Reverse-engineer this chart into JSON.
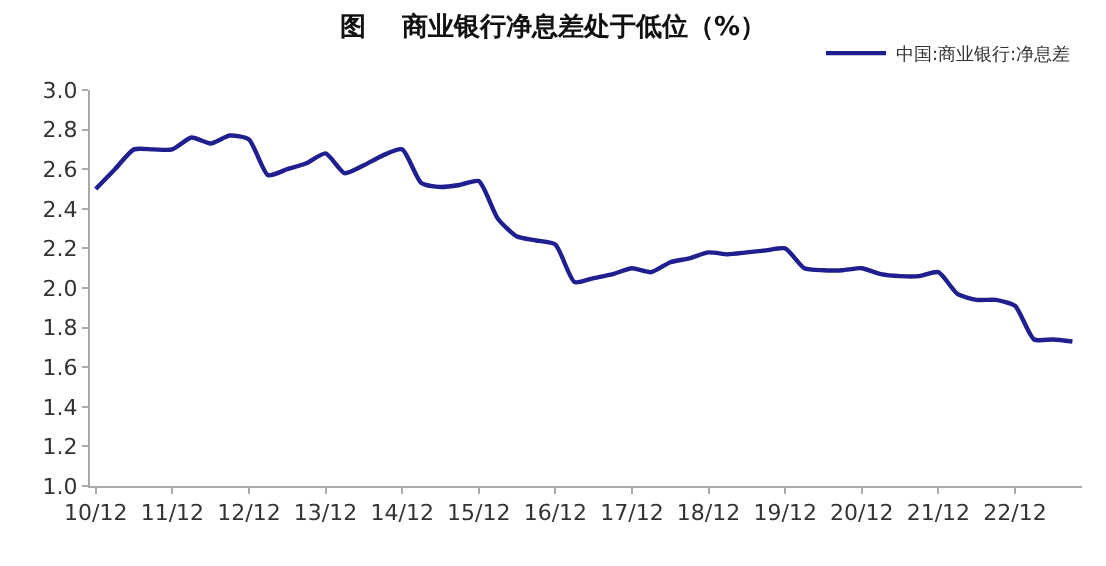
{
  "chart_data": {
    "type": "line",
    "title": "图    商业银行净息差处于低位（%）",
    "categories": [
      "10/12",
      null,
      null,
      null,
      "11/12",
      null,
      null,
      null,
      "12/12",
      null,
      null,
      null,
      "13/12",
      null,
      null,
      null,
      "14/12",
      null,
      null,
      null,
      "15/12",
      null,
      null,
      null,
      "16/12",
      null,
      null,
      null,
      "17/12",
      null,
      null,
      null,
      "18/12",
      null,
      null,
      null,
      "19/12",
      null,
      null,
      null,
      "20/12",
      null,
      null,
      null,
      "21/12",
      null,
      null,
      null,
      "22/12",
      null,
      null,
      null
    ],
    "series": [
      {
        "name": "中国:商业银行:净息差",
        "color": "#1f1f8f",
        "values": [
          2.5,
          2.6,
          2.7,
          2.7,
          2.7,
          2.76,
          2.73,
          2.77,
          2.75,
          2.57,
          2.6,
          2.63,
          2.68,
          2.58,
          2.62,
          2.67,
          2.7,
          2.53,
          2.51,
          2.52,
          2.54,
          2.35,
          2.26,
          2.24,
          2.22,
          2.03,
          2.05,
          2.07,
          2.1,
          2.08,
          2.13,
          2.15,
          2.18,
          2.17,
          2.18,
          2.19,
          2.2,
          2.1,
          2.09,
          2.09,
          2.1,
          2.07,
          2.06,
          2.06,
          2.08,
          1.97,
          1.94,
          1.94,
          1.91,
          1.74,
          1.74,
          1.73
        ]
      }
    ],
    "ylim": [
      1.0,
      3.0
    ],
    "yticks": [
      {
        "value": 1.0,
        "label": "1.0"
      },
      1.2,
      1.4,
      1.6,
      1.8,
      {
        "value": 2.0,
        "label": "2.0"
      },
      2.2,
      2.4,
      2.6,
      2.8,
      {
        "value": 3.0,
        "label": "3.0"
      }
    ],
    "legend": "top right",
    "marker": "none",
    "line_style": "solid"
  }
}
